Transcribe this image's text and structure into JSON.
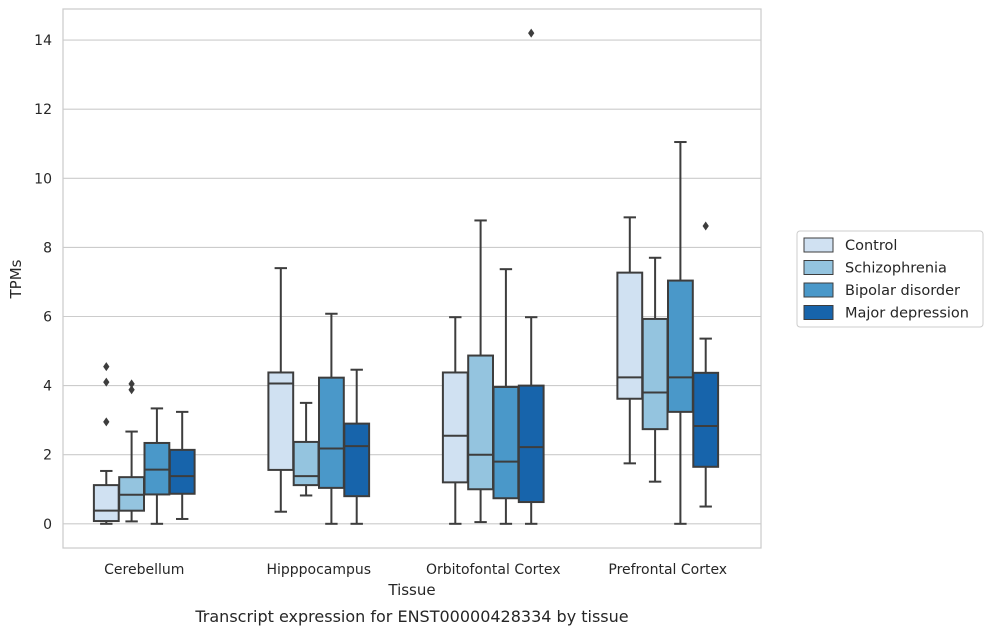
{
  "chart_data": {
    "type": "box",
    "caption": "Transcript expression for ENST00000428334 by tissue",
    "xlabel": "Tissue",
    "ylabel": "TPMs",
    "ylim": [
      -0.7,
      14.9
    ],
    "yticks": [
      0,
      2,
      4,
      6,
      8,
      10,
      12,
      14
    ],
    "grid": true,
    "legend_position": "center-right",
    "categories": [
      "Cerebellum",
      "Hipppocampus",
      "Orbitofontal Cortex",
      "Prefrontal Cortex"
    ],
    "series": [
      {
        "name": "Control",
        "color": "#d0e1f2",
        "boxes": [
          {
            "whislo": 0.0,
            "q1": 0.08,
            "med": 0.38,
            "q3": 1.12,
            "whishi": 1.53,
            "fliers": [
              2.95,
              4.1,
              4.55
            ]
          },
          {
            "whislo": 0.35,
            "q1": 1.56,
            "med": 4.06,
            "q3": 4.38,
            "whishi": 7.4,
            "fliers": []
          },
          {
            "whislo": 0.0,
            "q1": 1.2,
            "med": 2.55,
            "q3": 4.38,
            "whishi": 5.98,
            "fliers": []
          },
          {
            "whislo": 1.75,
            "q1": 3.62,
            "med": 4.24,
            "q3": 7.27,
            "whishi": 8.87,
            "fliers": []
          }
        ]
      },
      {
        "name": "Schizophrenia",
        "color": "#94c4df",
        "boxes": [
          {
            "whislo": 0.07,
            "q1": 0.38,
            "med": 0.84,
            "q3": 1.35,
            "whishi": 2.67,
            "fliers": [
              3.88,
              4.05
            ]
          },
          {
            "whislo": 0.82,
            "q1": 1.12,
            "med": 1.38,
            "q3": 2.37,
            "whishi": 3.5,
            "fliers": []
          },
          {
            "whislo": 0.05,
            "q1": 1.0,
            "med": 2.0,
            "q3": 4.87,
            "whishi": 8.78,
            "fliers": []
          },
          {
            "whislo": 1.22,
            "q1": 2.74,
            "med": 3.8,
            "q3": 5.93,
            "whishi": 7.7,
            "fliers": []
          }
        ]
      },
      {
        "name": "Bipolar disorder",
        "color": "#4a98c9",
        "boxes": [
          {
            "whislo": 0.0,
            "q1": 0.85,
            "med": 1.57,
            "q3": 2.34,
            "whishi": 3.34,
            "fliers": []
          },
          {
            "whislo": 0.0,
            "q1": 1.04,
            "med": 2.18,
            "q3": 4.23,
            "whishi": 6.08,
            "fliers": []
          },
          {
            "whislo": 0.0,
            "q1": 0.74,
            "med": 1.8,
            "q3": 3.96,
            "whishi": 7.37,
            "fliers": []
          },
          {
            "whislo": 0.0,
            "q1": 3.24,
            "med": 4.24,
            "q3": 7.04,
            "whishi": 11.05,
            "fliers": []
          }
        ]
      },
      {
        "name": "Major depression",
        "color": "#1764ab",
        "boxes": [
          {
            "whislo": 0.14,
            "q1": 0.87,
            "med": 1.38,
            "q3": 2.14,
            "whishi": 3.24,
            "fliers": []
          },
          {
            "whislo": 0.0,
            "q1": 0.8,
            "med": 2.25,
            "q3": 2.9,
            "whishi": 4.46,
            "fliers": []
          },
          {
            "whislo": 0.0,
            "q1": 0.63,
            "med": 2.22,
            "q3": 4.0,
            "whishi": 5.98,
            "fliers": [
              14.2
            ]
          },
          {
            "whislo": 0.5,
            "q1": 1.65,
            "med": 2.83,
            "q3": 4.37,
            "whishi": 5.36,
            "fliers": [
              8.62
            ]
          }
        ]
      }
    ]
  }
}
